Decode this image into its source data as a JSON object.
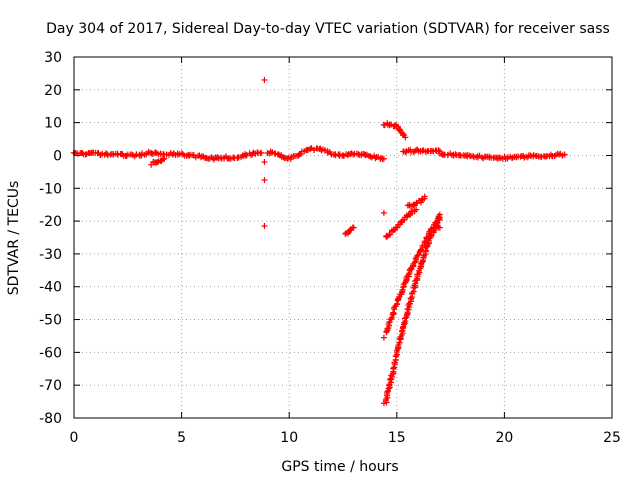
{
  "chart_data": {
    "type": "scatter",
    "title": "Day 304 of 2017, Sidereal Day-to-day VTEC variation (SDTVAR) for receiver sass",
    "xlabel": "GPS time / hours",
    "ylabel": "SDTVAR / TECUs",
    "xlim": [
      0,
      25
    ],
    "ylim": [
      -80,
      30
    ],
    "xticks": [
      0,
      5,
      10,
      15,
      20,
      25
    ],
    "yticks": [
      -80,
      -70,
      -60,
      -50,
      -40,
      -30,
      -20,
      -10,
      0,
      10,
      20,
      30
    ],
    "grid": true,
    "marker": "+",
    "color": "#ff0000",
    "segments": [
      {
        "x": [
          0.0,
          1.0,
          2.0,
          3.0,
          3.5,
          4.0,
          5.0,
          6.0,
          6.5,
          7.0,
          7.5,
          8.0,
          8.7
        ],
        "y": [
          0.5,
          0.5,
          0.2,
          0.0,
          1.0,
          0.5,
          0.3,
          -0.5,
          -1.0,
          -0.5,
          -0.8,
          0.3,
          0.8
        ]
      },
      {
        "x": [
          3.6,
          3.8,
          4.0,
          4.2
        ],
        "y": [
          -2.5,
          -2.0,
          -1.5,
          -1.0
        ]
      },
      {
        "x": [
          9.0,
          9.5,
          10.0,
          10.5,
          11.0,
          11.5,
          12.0,
          12.5,
          13.0,
          13.5,
          14.0,
          14.4
        ],
        "y": [
          1.0,
          0.5,
          -1.0,
          0.5,
          2.0,
          1.8,
          0.5,
          0.0,
          0.5,
          0.3,
          -0.5,
          -1.0
        ]
      },
      {
        "x": [
          14.4,
          14.7,
          15.0,
          15.1,
          15.3,
          15.4
        ],
        "y": [
          9.5,
          9.3,
          9.0,
          8.0,
          6.5,
          5.5
        ]
      },
      {
        "x": [
          15.3,
          16.0,
          17.0
        ],
        "y": [
          1.3,
          1.5,
          1.3
        ]
      },
      {
        "x": [
          17.0,
          18.0,
          19.0,
          20.0,
          21.0,
          22.0,
          22.8
        ],
        "y": [
          0.5,
          0.0,
          -0.5,
          -0.8,
          -0.3,
          0.0,
          0.3
        ]
      },
      {
        "x": [
          12.6,
          12.8,
          13.0
        ],
        "y": [
          -24.0,
          -23.0,
          -22.0
        ]
      },
      {
        "x": [
          14.5,
          15.0,
          15.5,
          15.9
        ],
        "y": [
          -25.0,
          -22.0,
          -18.5,
          -16.5
        ]
      },
      {
        "x": [
          15.5,
          15.8,
          16.1,
          16.3
        ],
        "y": [
          -15.5,
          -15.0,
          -14.0,
          -12.5
        ]
      },
      {
        "x": [
          14.5,
          15.0,
          15.5,
          16.0,
          16.5,
          17.0
        ],
        "y": [
          -54.0,
          -45.0,
          -37.0,
          -30.0,
          -24.0,
          -18.0
        ]
      },
      {
        "x": [
          14.5,
          14.8,
          15.2,
          15.6,
          16.0,
          16.5,
          17.0
        ],
        "y": [
          -75.0,
          -66.0,
          -55.0,
          -45.0,
          -36.0,
          -26.0,
          -19.0
        ]
      },
      {
        "x": [
          16.8,
          17.0
        ],
        "y": [
          -21.0,
          -22.0
        ]
      }
    ],
    "isolated_points": [
      {
        "x": 8.85,
        "y": 23.0
      },
      {
        "x": 8.85,
        "y": -2.0
      },
      {
        "x": 8.85,
        "y": -7.5
      },
      {
        "x": 8.85,
        "y": -21.5
      },
      {
        "x": 14.4,
        "y": -17.5
      },
      {
        "x": 14.4,
        "y": -55.5
      },
      {
        "x": 14.4,
        "y": -75.5
      }
    ]
  }
}
